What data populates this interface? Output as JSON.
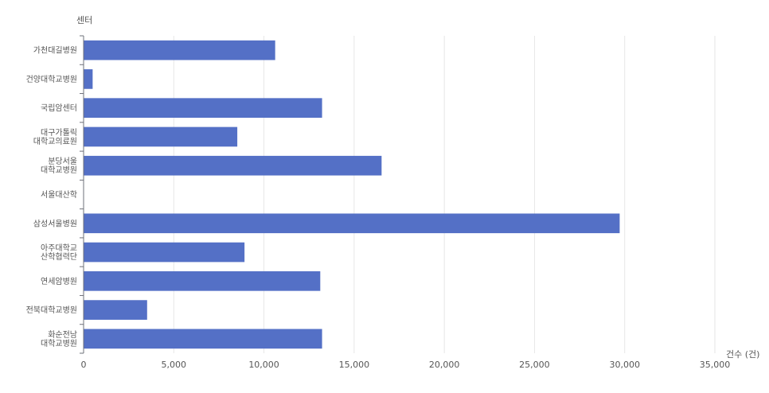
{
  "colors": {
    "bar": "#5470c6",
    "grid": "#e6e6e6",
    "axis": "#6e7079",
    "text": "#555555"
  },
  "chart_data": {
    "type": "bar",
    "orientation": "horizontal",
    "ylabel": "센터",
    "xlabel": "건수 (건)",
    "xlim": [
      0,
      35000
    ],
    "xticks": [
      0,
      5000,
      10000,
      15000,
      20000,
      25000,
      30000,
      35000
    ],
    "xtick_labels": [
      "0",
      "5,000",
      "10,000",
      "15,000",
      "20,000",
      "25,000",
      "30,000",
      "35,000"
    ],
    "grid": "vertical",
    "categories": [
      [
        "가천대길병원"
      ],
      [
        "건양대학교병원"
      ],
      [
        "국립암센터"
      ],
      [
        "대구가톨릭",
        "대학교의료원"
      ],
      [
        "분당서울",
        "대학교병원"
      ],
      [
        "서울대산학"
      ],
      [
        "삼성서울병원"
      ],
      [
        "아주대학교",
        "산학협력단"
      ],
      [
        "연세암병원"
      ],
      [
        "전북대학교병원"
      ],
      [
        "화순전남",
        "대학교병원"
      ]
    ],
    "values": [
      10600,
      480,
      13200,
      8500,
      16500,
      0,
      29700,
      8900,
      13100,
      3500,
      13200
    ]
  }
}
